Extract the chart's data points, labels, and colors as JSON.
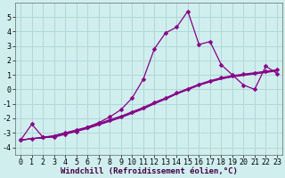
{
  "bg_color": "#d0eeee",
  "grid_color": "#b0d8d8",
  "line_color": "#880088",
  "xlabel": "Windchill (Refroidissement éolien,°C)",
  "xlabel_fontsize": 6.5,
  "tick_fontsize": 6,
  "xlim": [
    -0.5,
    23.5
  ],
  "ylim": [
    -4.5,
    6.0
  ],
  "yticks": [
    -4,
    -3,
    -2,
    -1,
    0,
    1,
    2,
    3,
    4,
    5
  ],
  "xticks": [
    0,
    1,
    2,
    3,
    4,
    5,
    6,
    7,
    8,
    9,
    10,
    11,
    12,
    13,
    14,
    15,
    16,
    17,
    18,
    19,
    20,
    21,
    22,
    23
  ],
  "s1_x": [
    0,
    1,
    2,
    3,
    4,
    5,
    6,
    7,
    8,
    9,
    10,
    11,
    12,
    13,
    14,
    15,
    16,
    17,
    18,
    19,
    20,
    21,
    22,
    23
  ],
  "s1_y": [
    -3.5,
    -2.4,
    -3.3,
    -3.3,
    -3.1,
    -2.9,
    -2.6,
    -2.3,
    -1.9,
    -1.4,
    -0.6,
    0.7,
    2.8,
    3.9,
    4.3,
    5.4,
    3.1,
    3.3,
    1.7,
    1.0,
    0.3,
    0.0,
    1.6,
    1.1
  ],
  "s2_x": [
    0,
    1,
    2,
    3,
    4,
    5,
    6,
    7,
    8,
    9,
    10,
    11,
    12,
    13,
    14,
    15,
    16,
    17,
    18,
    19,
    20,
    21,
    22,
    23
  ],
  "s2_y": [
    -3.5,
    -3.4,
    -3.3,
    -3.2,
    -3.0,
    -2.8,
    -2.6,
    -2.35,
    -2.1,
    -1.85,
    -1.55,
    -1.25,
    -0.9,
    -0.6,
    -0.25,
    0.05,
    0.35,
    0.6,
    0.8,
    0.95,
    1.05,
    1.15,
    1.25,
    1.35
  ],
  "s3_x": [
    0,
    1,
    2,
    3,
    4,
    5,
    6,
    7,
    8,
    9,
    10,
    11,
    12,
    13,
    14,
    15,
    16,
    17,
    18,
    19,
    20,
    21,
    22,
    23
  ],
  "s3_y": [
    -3.5,
    -3.4,
    -3.35,
    -3.2,
    -3.0,
    -2.85,
    -2.65,
    -2.4,
    -2.15,
    -1.9,
    -1.6,
    -1.3,
    -0.95,
    -0.62,
    -0.28,
    0.02,
    0.32,
    0.55,
    0.75,
    0.9,
    1.0,
    1.1,
    1.2,
    1.3
  ],
  "s4_x": [
    0,
    1,
    2,
    3,
    4,
    5,
    6,
    7,
    8,
    9,
    10,
    11,
    12,
    13,
    14,
    15,
    16,
    17,
    18,
    19,
    20,
    21,
    22,
    23
  ],
  "s4_y": [
    -3.5,
    -3.4,
    -3.35,
    -3.25,
    -3.05,
    -2.9,
    -2.7,
    -2.45,
    -2.2,
    -1.95,
    -1.65,
    -1.35,
    -1.0,
    -0.67,
    -0.32,
    -0.02,
    0.28,
    0.52,
    0.72,
    0.87,
    0.97,
    1.07,
    1.17,
    1.27
  ]
}
